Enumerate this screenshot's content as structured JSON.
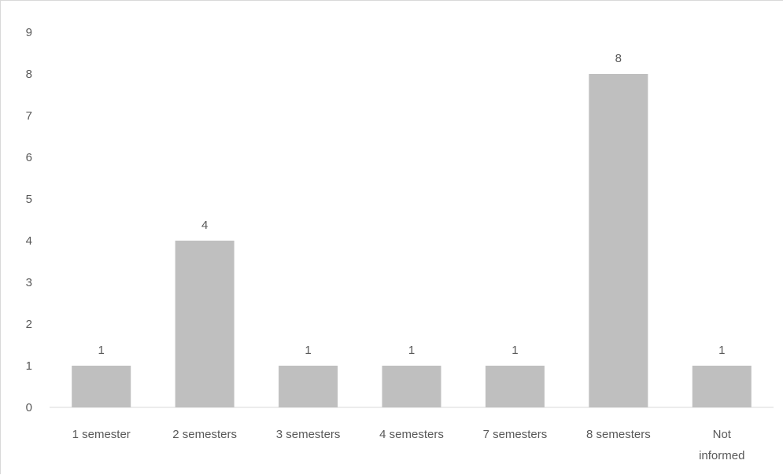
{
  "chart_data": {
    "type": "bar",
    "categories": [
      "1 semester",
      "2 semesters",
      "3 semesters",
      "4 semesters",
      "7 semesters",
      "8 semesters",
      "Not informed"
    ],
    "category_lines": [
      [
        "1 semester"
      ],
      [
        "2 semesters"
      ],
      [
        "3 semesters"
      ],
      [
        "4 semesters"
      ],
      [
        "7 semesters"
      ],
      [
        "8 semesters"
      ],
      [
        "Not",
        "informed"
      ]
    ],
    "values": [
      1,
      4,
      1,
      1,
      1,
      8,
      1
    ],
    "data_labels": [
      "1",
      "4",
      "1",
      "1",
      "1",
      "8",
      "1"
    ],
    "title": "",
    "xlabel": "",
    "ylabel": "",
    "ylim": [
      0,
      9
    ],
    "y_ticks": [
      "0",
      "1",
      "2",
      "3",
      "4",
      "5",
      "6",
      "7",
      "8",
      "9"
    ],
    "grid": false,
    "legend": "none",
    "bar_color": "#bfbfbf",
    "axis_color": "#d9d9d9",
    "text_color": "#595959"
  }
}
